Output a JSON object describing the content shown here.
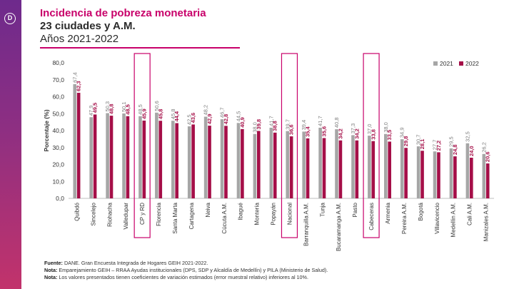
{
  "header": {
    "title": "Incidencia de pobreza monetaria",
    "subtitle": "23 ciudades y A.M.",
    "years": "Años 2021-2022"
  },
  "logo": {
    "glyph": "D",
    "icon": "dane-logo-icon"
  },
  "footer": {
    "source_label": "Fuente:",
    "source_text": "DANE. Gran Encuesta Integrada de Hogares GEIH 2021-2022.",
    "note1_label": "Nota:",
    "note1_text": "Emparejamiento GEIH – RRAA Ayudas institucionales (DPS, SDP y Alcaldía de Medellín) y PILA (Ministerio de Salud).",
    "note2_label": "Nota:",
    "note2_text": "Los valores presentados tienen coeficientes de variación estimados (error muestral relativo) inferiores al 10%."
  },
  "colors": {
    "series2021": "#a6a6a6",
    "series2022": "#a50f48",
    "highlight": "#c8006a",
    "title": "#c8006a"
  },
  "chart_data": {
    "type": "bar",
    "ylabel": "Porcentaje (%)",
    "ylim": [
      0,
      80
    ],
    "yticks": [
      "0,0",
      "10,0",
      "20,0",
      "30,0",
      "40,0",
      "50,0",
      "60,0",
      "70,0",
      "80,0"
    ],
    "categories": [
      "Quibdó",
      "Sincelejo",
      "Riohacha",
      "Valledupar",
      "CP y RD",
      "Florencia",
      "Santa Marta",
      "Cartagena",
      "Neiva",
      "Cúcuta A.M.",
      "Ibagué",
      "Montería",
      "Popayán",
      "Nacional",
      "Barranquilla A.M.",
      "Tunja",
      "Bucaramanga A.M.",
      "Pasto",
      "Cabeceras",
      "Armenia",
      "Pereira A.M.",
      "Bogotá",
      "Villavicencio",
      "Medellín A.M.",
      "Cali A.M.",
      "Manizales A.M."
    ],
    "highlighted": [
      "CP y RD",
      "Nacional",
      "Cabeceras"
    ],
    "series": [
      {
        "name": "2021",
        "values": [
          67.4,
          47.9,
          50.3,
          50.1,
          48.5,
          50.6,
          45.8,
          42.5,
          48.2,
          46.7,
          44.5,
          38.0,
          41.7,
          39.7,
          39.4,
          41.7,
          40.8,
          37.3,
          37.0,
          38.0,
          34.9,
          30.7,
          27.7,
          29.5,
          32.5,
          26.2
        ],
        "labels": [
          "67,4",
          "47,9",
          "50,3",
          "50,1",
          "48,5",
          "50,6",
          "45,8",
          "42,5",
          "48,2",
          "46,7",
          "44,5",
          "38,0",
          "41,7",
          "39,7",
          "39,4",
          "41,7",
          "40,8",
          "37,3",
          "37,0",
          "38,0",
          "34,9",
          "30,7",
          "27,7",
          "29,5",
          "32,5",
          "26,2"
        ]
      },
      {
        "name": "2022",
        "values": [
          62.3,
          49.5,
          48.8,
          48.5,
          45.9,
          45.8,
          44.4,
          43.6,
          42.9,
          42.8,
          40.9,
          39.8,
          38.8,
          36.6,
          35.4,
          35.6,
          34.2,
          34.2,
          33.8,
          33.5,
          29.8,
          28.1,
          27.2,
          24.8,
          24.0,
          20.6
        ],
        "labels": [
          "62,3",
          "49,5",
          "48,8",
          "48,5",
          "45,9",
          "45,8",
          "44,4",
          "43,6",
          "42,9",
          "42,8",
          "40,9",
          "39,8",
          "38,8",
          "36,6",
          "35,4",
          "35,6",
          "34,2",
          "34,2",
          "33,8",
          "33,5",
          "29,8",
          "28,1",
          "27,2",
          "24,8",
          "24,0",
          "20,6"
        ]
      }
    ]
  }
}
